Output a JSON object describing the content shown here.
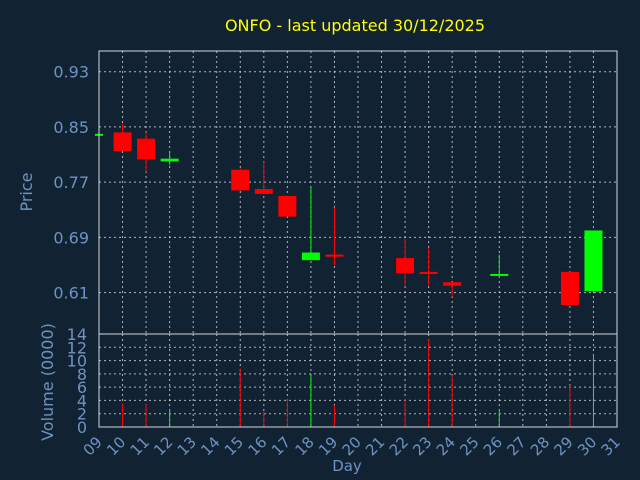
{
  "chart_data": {
    "type": "candlestick",
    "title": "ONFO - last updated 30/12/2025",
    "xlabel": "Day",
    "x_ticks": [
      "09",
      "10",
      "11",
      "12",
      "13",
      "14",
      "15",
      "16",
      "17",
      "18",
      "19",
      "20",
      "21",
      "22",
      "23",
      "24",
      "25",
      "26",
      "27",
      "28",
      "29",
      "30",
      "31"
    ],
    "price": {
      "ylabel": "Price",
      "ylim": [
        0.55,
        0.96
      ],
      "y_ticks": [
        "0.93",
        "0.85",
        "0.77",
        "0.69",
        "0.61"
      ],
      "y_tick_values": [
        0.93,
        0.85,
        0.77,
        0.69,
        0.61
      ],
      "candles": [
        {
          "day": 9,
          "open": 0.84,
          "high": 0.84,
          "low": 0.84,
          "close": 0.84
        },
        {
          "day": 10,
          "open": 0.842,
          "high": 0.855,
          "low": 0.815,
          "close": 0.815
        },
        {
          "day": 11,
          "open": 0.833,
          "high": 0.842,
          "low": 0.785,
          "close": 0.803
        },
        {
          "day": 12,
          "open": 0.8,
          "high": 0.815,
          "low": 0.795,
          "close": 0.804
        },
        {
          "day": 15,
          "open": 0.788,
          "high": 0.79,
          "low": 0.758,
          "close": 0.758
        },
        {
          "day": 16,
          "open": 0.76,
          "high": 0.8,
          "low": 0.753,
          "close": 0.753
        },
        {
          "day": 17,
          "open": 0.75,
          "high": 0.75,
          "low": 0.72,
          "close": 0.72
        },
        {
          "day": 18,
          "open": 0.657,
          "high": 0.762,
          "low": 0.657,
          "close": 0.668
        },
        {
          "day": 19,
          "open": 0.665,
          "high": 0.733,
          "low": 0.65,
          "close": 0.662
        },
        {
          "day": 22,
          "open": 0.66,
          "high": 0.687,
          "low": 0.62,
          "close": 0.638
        },
        {
          "day": 23,
          "open": 0.64,
          "high": 0.675,
          "low": 0.62,
          "close": 0.637
        },
        {
          "day": 24,
          "open": 0.625,
          "high": 0.625,
          "low": 0.604,
          "close": 0.62
        },
        {
          "day": 26,
          "open": 0.635,
          "high": 0.665,
          "low": 0.635,
          "close": 0.637
        },
        {
          "day": 29,
          "open": 0.64,
          "high": 0.64,
          "low": 0.592,
          "close": 0.592
        },
        {
          "day": 30,
          "open": 0.612,
          "high": 0.7,
          "low": 0.612,
          "close": 0.7
        }
      ]
    },
    "volume": {
      "ylabel": "Volume (0000)",
      "ylim": [
        0,
        14
      ],
      "y_ticks": [
        "14",
        "12",
        "10",
        "8",
        "6",
        "4",
        "2",
        "0"
      ],
      "y_tick_values": [
        14,
        12,
        10,
        8,
        6,
        4,
        2,
        0
      ],
      "bars": [
        {
          "day": 10,
          "value": 3.5,
          "direction": "down"
        },
        {
          "day": 11,
          "value": 3.5,
          "direction": "down"
        },
        {
          "day": 12,
          "value": 2.7,
          "direction": "up"
        },
        {
          "day": 15,
          "value": 8.8,
          "direction": "down"
        },
        {
          "day": 16,
          "value": 2.3,
          "direction": "down"
        },
        {
          "day": 17,
          "value": 4.2,
          "direction": "down"
        },
        {
          "day": 18,
          "value": 7.8,
          "direction": "up"
        },
        {
          "day": 19,
          "value": 3.3,
          "direction": "down"
        },
        {
          "day": 22,
          "value": 4.2,
          "direction": "down"
        },
        {
          "day": 23,
          "value": 13.2,
          "direction": "down"
        },
        {
          "day": 24,
          "value": 7.8,
          "direction": "down"
        },
        {
          "day": 26,
          "value": 2.5,
          "direction": "up"
        },
        {
          "day": 29,
          "value": 6.3,
          "direction": "down"
        },
        {
          "day": 30,
          "value": 11.0,
          "direction": "up"
        }
      ]
    },
    "grid": true,
    "colors": {
      "background": "#112233",
      "up": "#00ff00",
      "down": "#ff0000",
      "axis_text": "#6f93c0",
      "title": "#ffff00",
      "frame": "#d8d8d8",
      "grid": "#e6e6e6"
    }
  }
}
